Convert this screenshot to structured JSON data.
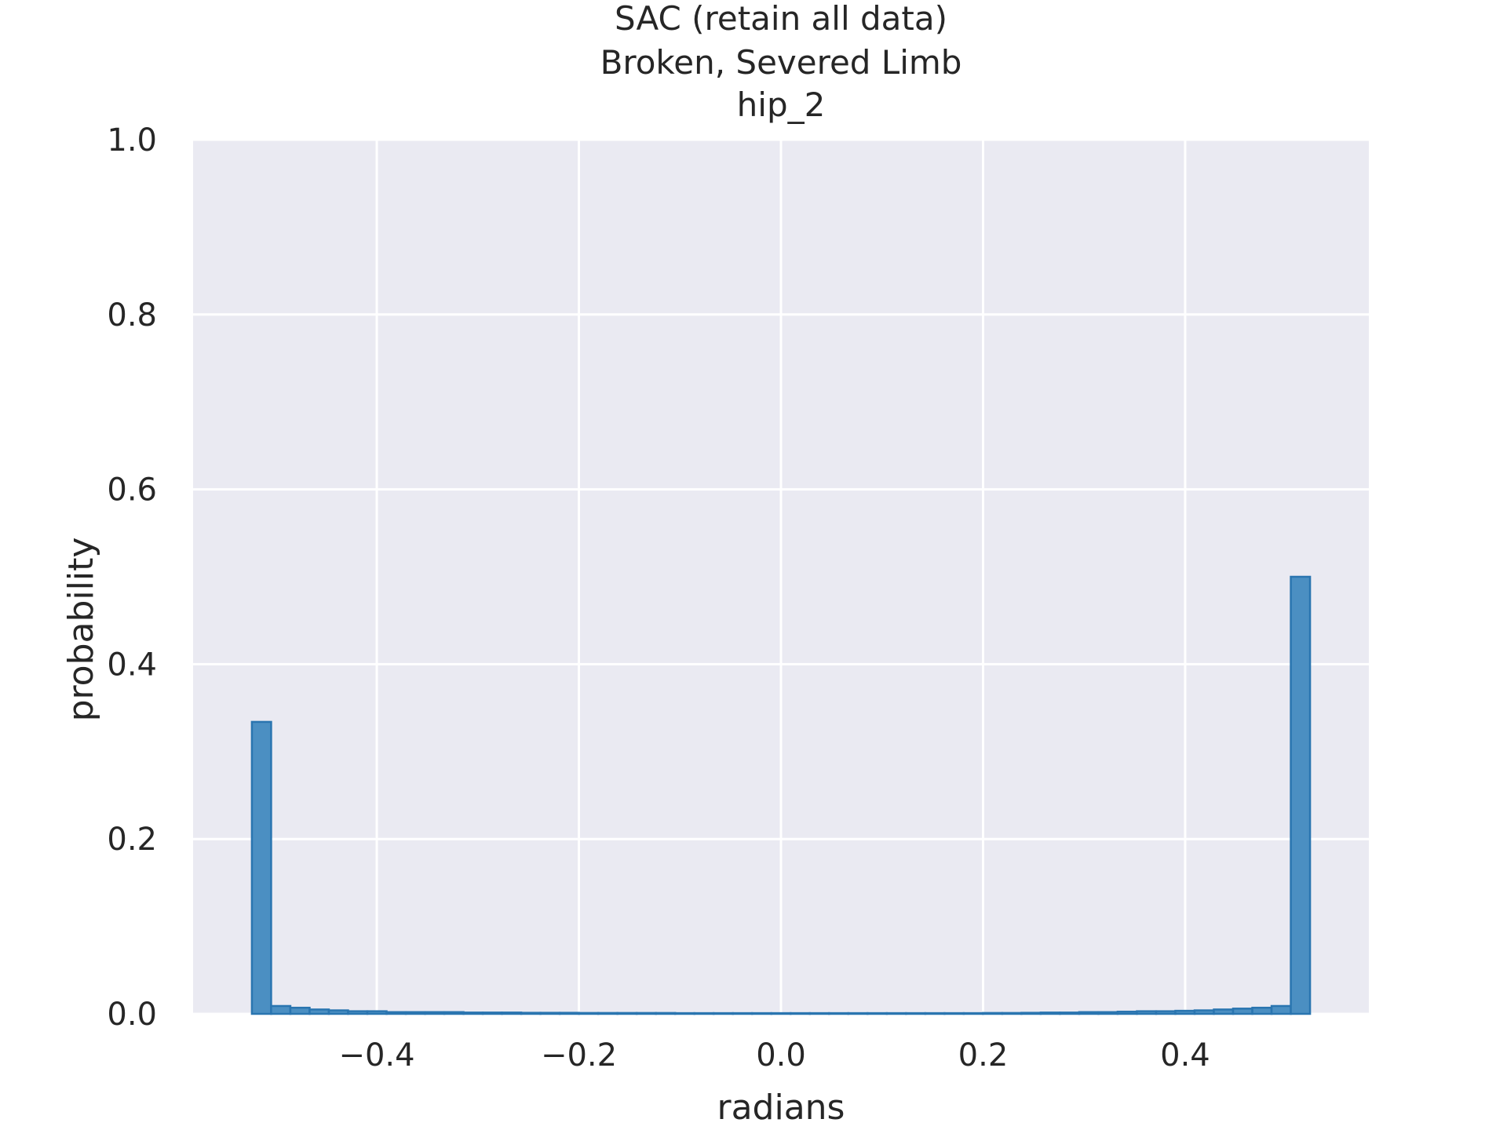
{
  "chart_data": {
    "type": "bar",
    "title_lines": [
      "SAC (retain all data)",
      "Broken, Severed Limb",
      "hip_2"
    ],
    "xlabel": "radians",
    "ylabel": "probability",
    "xlim": [
      -0.5818,
      0.5818
    ],
    "ylim": [
      0.0,
      1.0
    ],
    "xticks": [
      -0.4,
      -0.2,
      0.0,
      0.2,
      0.4
    ],
    "xtick_labels": [
      "−0.4",
      "−0.2",
      "0.0",
      "0.2",
      "0.4"
    ],
    "yticks": [
      0.0,
      0.2,
      0.4,
      0.6,
      0.8,
      1.0
    ],
    "ytick_labels": [
      "0.0",
      "0.2",
      "0.4",
      "0.6",
      "0.8",
      "1.0"
    ],
    "grid": true,
    "bin_range": [
      -0.5236,
      0.5236
    ],
    "bin_count": 55,
    "values": [
      0.334,
      0.009,
      0.007,
      0.005,
      0.004,
      0.003,
      0.003,
      0.002,
      0.002,
      0.002,
      0.002,
      0.0015,
      0.0015,
      0.0015,
      0.0012,
      0.0012,
      0.0012,
      0.001,
      0.001,
      0.001,
      0.001,
      0.001,
      0.0008,
      0.0008,
      0.0008,
      0.0008,
      0.0008,
      0.0008,
      0.0008,
      0.0008,
      0.0008,
      0.0008,
      0.0008,
      0.0008,
      0.0008,
      0.0008,
      0.0008,
      0.0008,
      0.001,
      0.001,
      0.0012,
      0.0015,
      0.0015,
      0.002,
      0.002,
      0.0025,
      0.003,
      0.003,
      0.0035,
      0.004,
      0.005,
      0.006,
      0.007,
      0.009,
      0.5
    ],
    "colors": {
      "bar_fill": "#4b8fc2",
      "bar_edge": "#2a75b0",
      "plot_background": "#eaeaf2",
      "grid": "#ffffff",
      "text": "#262626"
    }
  }
}
